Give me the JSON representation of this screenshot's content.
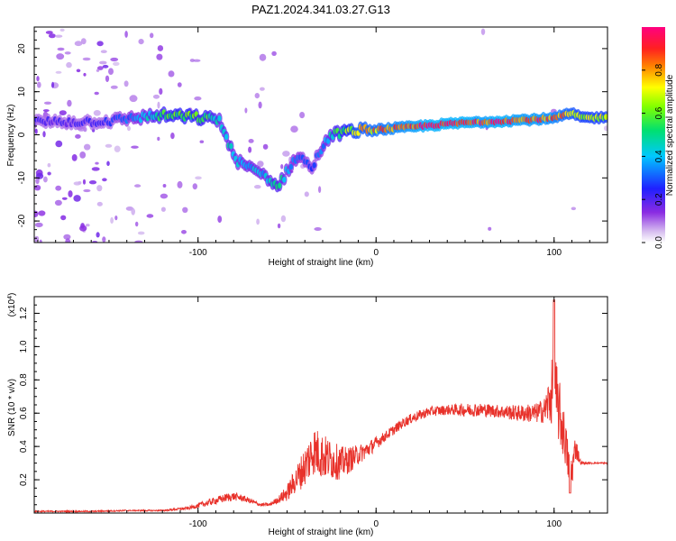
{
  "title": "PAZ1.2024.341.03.27.G13",
  "chart_data": [
    {
      "type": "heatmap",
      "xlabel": "Height of straight line (km)",
      "ylabel": "Frequency (Hz)",
      "xlim": [
        -192,
        130
      ],
      "ylim": [
        -25,
        25
      ],
      "xticks": [
        -100,
        0,
        100
      ],
      "yticks": [
        -20,
        -10,
        0,
        10,
        20
      ],
      "colorbar": {
        "label": "Normalized spectral amplitude",
        "range": [
          0,
          1
        ],
        "ticks": [
          "0.0",
          "0.2",
          "0.4",
          "0.6",
          "0.8"
        ],
        "colormap": "rainbow (violet → blue → cyan → green → yellow → orange → red → magenta)"
      },
      "ridge": {
        "description": "dominant Doppler-frequency trace (Hz) vs. height (km)",
        "x": [
          -190,
          -170,
          -150,
          -135,
          -120,
          -105,
          -95,
          -88,
          -82,
          -78,
          -70,
          -62,
          -56,
          -52,
          -48,
          -44,
          -40,
          -36,
          -32,
          -28,
          -24,
          -20,
          -10,
          0,
          10,
          20,
          30,
          40,
          50,
          60,
          70,
          80,
          90,
          100,
          105,
          110,
          115,
          120,
          130
        ],
        "y": [
          3,
          3,
          3.2,
          4,
          4.5,
          4.2,
          3.8,
          3.5,
          -3,
          -6,
          -8,
          -9.5,
          -12,
          -10,
          -7,
          -5,
          -6,
          -8,
          -4,
          -1.5,
          0,
          0.5,
          1,
          1.2,
          1.5,
          1.8,
          2.2,
          2.5,
          2.8,
          3.0,
          3.2,
          3.4,
          3.6,
          3.8,
          4.5,
          5,
          4.0,
          4.0,
          4.0
        ],
        "amplitude": [
          0.2,
          0.2,
          0.25,
          0.35,
          0.55,
          0.6,
          0.55,
          0.45,
          0.45,
          0.4,
          0.4,
          0.4,
          0.5,
          0.45,
          0.35,
          0.35,
          0.3,
          0.3,
          0.3,
          0.4,
          0.5,
          0.55,
          0.75,
          0.8,
          0.85,
          0.9,
          0.95,
          0.95,
          0.95,
          0.9,
          0.95,
          0.9,
          0.9,
          0.85,
          0.8,
          0.75,
          0.7,
          0.7,
          0.7
        ]
      }
    },
    {
      "type": "line",
      "xlabel": "Height of straight line (km)",
      "ylabel": "SNR (10 * v/v)",
      "y_multiplier": "(x10",
      "y_multiplier_exp": "4",
      "y_multiplier_close": ")",
      "xlim": [
        -192,
        130
      ],
      "ylim": [
        0,
        1.3
      ],
      "xticks": [
        -100,
        0,
        100
      ],
      "yticks": [
        "0.2",
        "0.4",
        "0.6",
        "0.8",
        "1.0",
        "1.2"
      ],
      "color": "#e8312a",
      "series": [
        {
          "x": [
            -192,
            -180,
            -160,
            -140,
            -120,
            -105,
            -95,
            -85,
            -80,
            -75,
            -70,
            -65,
            -60,
            -55,
            -50,
            -45,
            -40,
            -35,
            -30,
            -25,
            -20,
            -15,
            -10,
            -5,
            0,
            5,
            10,
            15,
            20,
            25,
            30,
            40,
            50,
            60,
            70,
            80,
            90,
            95,
            100,
            103,
            106,
            108,
            110,
            112,
            115,
            120,
            130
          ],
          "y": [
            0.01,
            0.01,
            0.01,
            0.015,
            0.015,
            0.03,
            0.06,
            0.09,
            0.1,
            0.09,
            0.07,
            0.05,
            0.05,
            0.08,
            0.12,
            0.2,
            0.28,
            0.38,
            0.34,
            0.32,
            0.3,
            0.32,
            0.35,
            0.38,
            0.42,
            0.46,
            0.5,
            0.54,
            0.57,
            0.59,
            0.61,
            0.62,
            0.62,
            0.62,
            0.61,
            0.6,
            0.6,
            0.62,
            0.75,
            0.6,
            0.45,
            0.3,
            0.25,
            0.4,
            0.3,
            0.3,
            0.3
          ],
          "noise": [
            0.004,
            0.004,
            0.004,
            0.004,
            0.004,
            0.01,
            0.02,
            0.025,
            0.025,
            0.02,
            0.015,
            0.01,
            0.01,
            0.02,
            0.05,
            0.08,
            0.12,
            0.15,
            0.14,
            0.12,
            0.1,
            0.08,
            0.06,
            0.05,
            0.04,
            0.03,
            0.03,
            0.03,
            0.03,
            0.03,
            0.03,
            0.03,
            0.04,
            0.04,
            0.04,
            0.05,
            0.06,
            0.08,
            0.25,
            0.2,
            0.15,
            0.12,
            0.1,
            0.08,
            0.01,
            0.005,
            0.005
          ]
        }
      ]
    }
  ]
}
